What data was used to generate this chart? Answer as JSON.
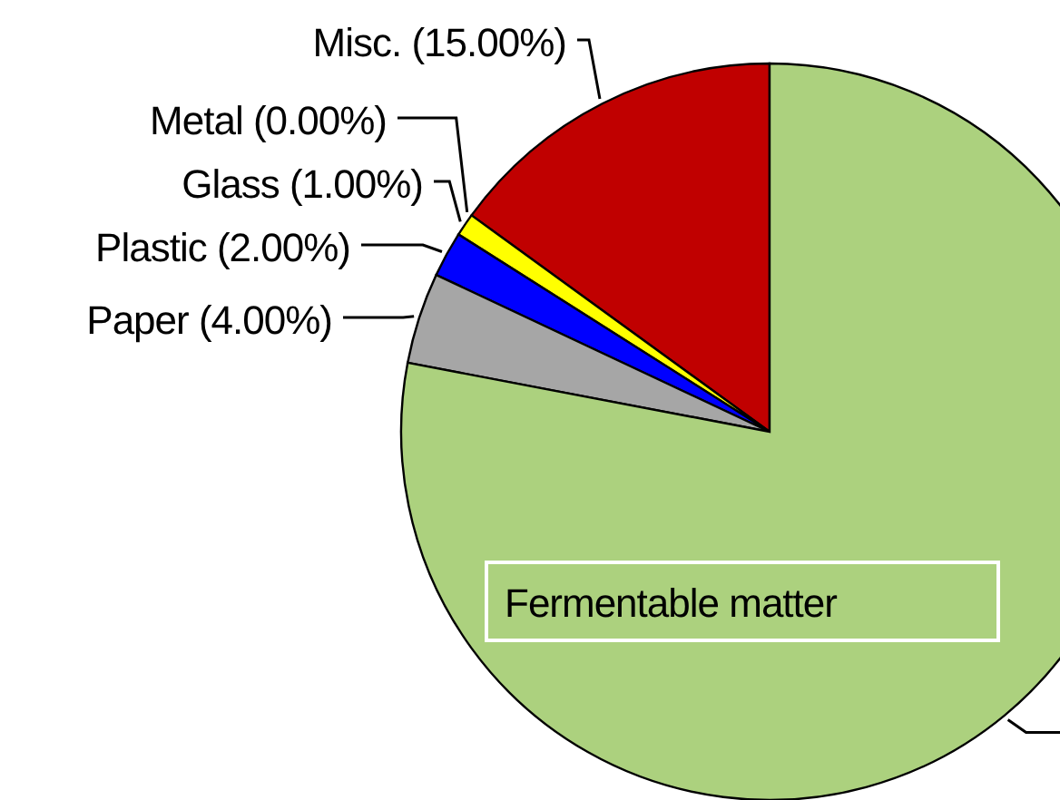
{
  "chart_data": {
    "type": "pie",
    "categories": [
      "Misc. (15.00%)",
      "Metal (0.00%)",
      "Glass (1.00%)",
      "Plastic (2.00%)",
      "Paper (4.00%)",
      "Fermentable matter"
    ],
    "values": [
      15,
      0,
      1,
      2,
      4,
      78
    ],
    "colors": [
      "#c00000",
      "#ff8040",
      "#ffff00",
      "#0000ff",
      "#a6a6a6",
      "#acd17e"
    ]
  }
}
